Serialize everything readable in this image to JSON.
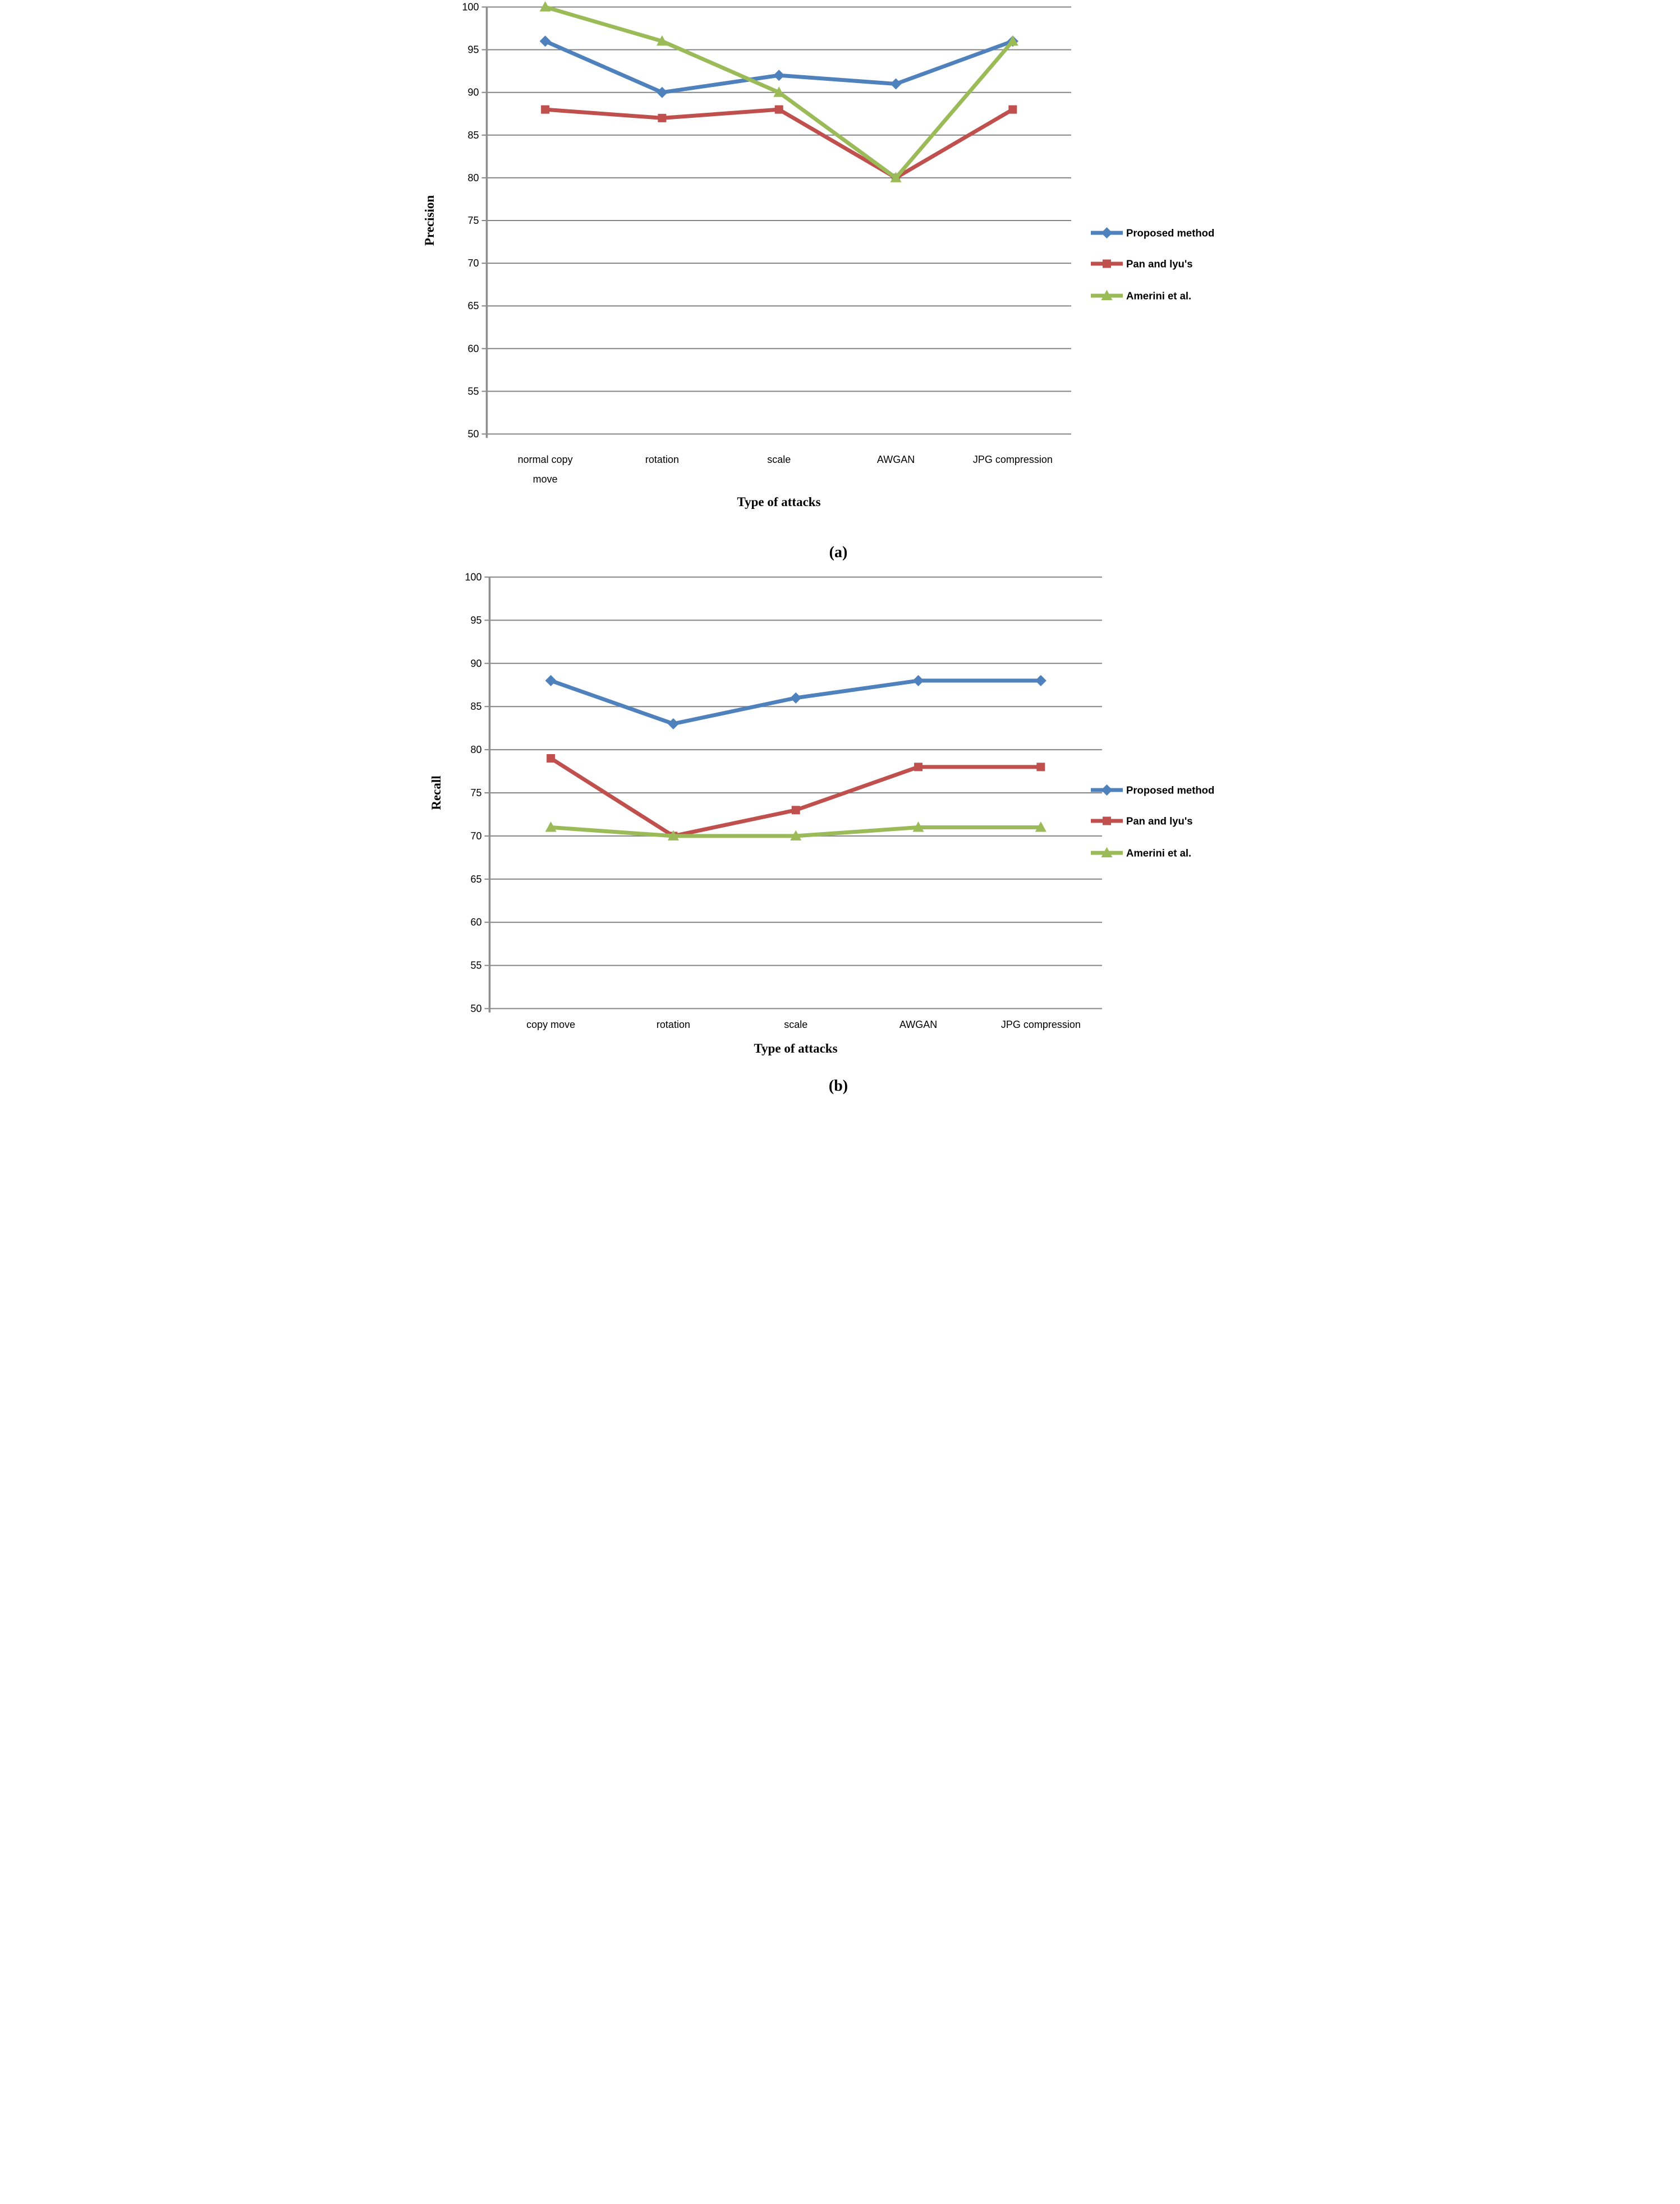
{
  "page": {
    "background": "#ffffff"
  },
  "colors": {
    "series_blue": "#4F81BD",
    "series_red": "#C0504D",
    "series_green": "#9BBB59",
    "gridline": "#858585",
    "axis_line": "#8E8E8E",
    "text": "#000000"
  },
  "chart_data": [
    {
      "type": "line",
      "title": "",
      "ylabel": "Precision",
      "xlabel": "Type of attacks",
      "caption": "(a)",
      "categories": [
        "normal copy move",
        "rotation",
        "scale",
        "AWGAN",
        "JPG compression"
      ],
      "ylim": [
        50,
        100
      ],
      "ytick_step": 5,
      "yticks": [
        50,
        55,
        60,
        65,
        70,
        75,
        80,
        85,
        90,
        95,
        100
      ],
      "grid": true,
      "legend_position": "right",
      "series": [
        {
          "name": "Proposed method",
          "marker": "diamond",
          "color": "#4F81BD",
          "values": [
            96,
            90,
            92,
            91,
            96
          ]
        },
        {
          "name": "Pan and lyu's",
          "marker": "square",
          "color": "#C0504D",
          "values": [
            88,
            87,
            88,
            80,
            88
          ]
        },
        {
          "name": "Amerini et al.",
          "marker": "triangle",
          "color": "#9BBB59",
          "values": [
            100,
            96,
            90,
            80,
            96
          ]
        }
      ]
    },
    {
      "type": "line",
      "title": "",
      "ylabel": "Recall",
      "xlabel": "Type of attacks",
      "caption": "(b)",
      "categories": [
        "copy move",
        "rotation",
        "scale",
        "AWGAN",
        "JPG compression"
      ],
      "ylim": [
        50,
        100
      ],
      "ytick_step": 5,
      "yticks": [
        50,
        55,
        60,
        65,
        70,
        75,
        80,
        85,
        90,
        95,
        100
      ],
      "grid": true,
      "legend_position": "right",
      "series": [
        {
          "name": "Proposed method",
          "marker": "diamond",
          "color": "#4F81BD",
          "values": [
            88,
            83,
            86,
            88,
            88
          ]
        },
        {
          "name": "Pan and lyu's",
          "marker": "square",
          "color": "#C0504D",
          "values": [
            79,
            70,
            73,
            78,
            78
          ]
        },
        {
          "name": "Amerini et al.",
          "marker": "triangle",
          "color": "#9BBB59",
          "values": [
            71,
            70,
            70,
            71,
            71
          ]
        }
      ]
    }
  ]
}
